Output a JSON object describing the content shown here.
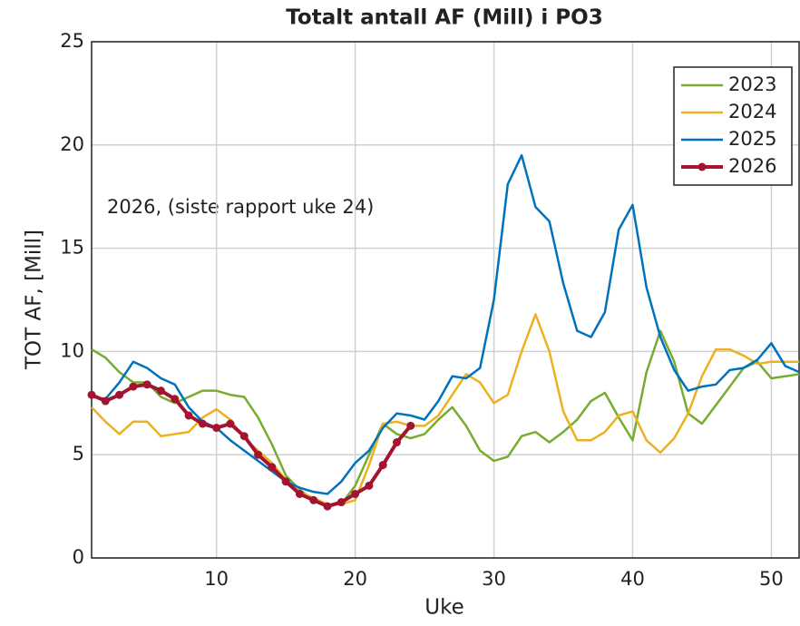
{
  "chart_data": {
    "type": "line",
    "title": "Totalt antall AF (Mill) i PO3",
    "xlabel": "Uke",
    "ylabel": "TOT AF, [Mill]",
    "annotation": "2026, (siste rapport uke 24)",
    "x": [
      1,
      2,
      3,
      4,
      5,
      6,
      7,
      8,
      9,
      10,
      11,
      12,
      13,
      14,
      15,
      16,
      17,
      18,
      19,
      20,
      21,
      22,
      23,
      24,
      25,
      26,
      27,
      28,
      29,
      30,
      31,
      32,
      33,
      34,
      35,
      36,
      37,
      38,
      39,
      40,
      41,
      42,
      43,
      44,
      45,
      46,
      47,
      48,
      49,
      50,
      51,
      52
    ],
    "xlim": [
      1,
      52
    ],
    "ylim": [
      0,
      25
    ],
    "xticks": [
      10,
      20,
      30,
      40,
      50
    ],
    "yticks": [
      0,
      5,
      10,
      15,
      20,
      25
    ],
    "grid": true,
    "legend": "upper right",
    "series": [
      {
        "name": "2023",
        "color": "#77ac30",
        "width": 2.5,
        "marker": false,
        "values": [
          10.1,
          9.7,
          9.0,
          8.5,
          8.5,
          7.8,
          7.5,
          7.8,
          8.1,
          8.1,
          7.9,
          7.8,
          6.8,
          5.5,
          4.0,
          3.3,
          2.8,
          2.6,
          2.6,
          3.5,
          5.0,
          6.5,
          6.0,
          5.8,
          6.0,
          6.7,
          7.3,
          6.4,
          5.2,
          4.7,
          4.9,
          5.9,
          6.1,
          5.6,
          6.1,
          6.7,
          7.6,
          8.0,
          6.8,
          5.7,
          9.0,
          11.0,
          9.5,
          7.0,
          6.5,
          7.4,
          8.3,
          9.2,
          9.5,
          8.7,
          8.8,
          8.9
        ]
      },
      {
        "name": "2024",
        "color": "#edb120",
        "width": 2.5,
        "marker": false,
        "values": [
          7.3,
          6.6,
          6.0,
          6.6,
          6.6,
          5.9,
          6.0,
          6.1,
          6.8,
          7.2,
          6.7,
          5.8,
          5.2,
          4.6,
          3.8,
          3.2,
          2.9,
          2.6,
          2.6,
          2.8,
          4.5,
          6.5,
          6.6,
          6.4,
          6.4,
          6.9,
          7.9,
          8.9,
          8.5,
          7.5,
          7.9,
          10.0,
          11.8,
          10.0,
          7.1,
          5.7,
          5.7,
          6.1,
          6.9,
          7.1,
          5.7,
          5.1,
          5.8,
          7.0,
          8.8,
          10.1,
          10.1,
          9.8,
          9.4,
          9.5,
          9.5,
          9.5
        ]
      },
      {
        "name": "2025",
        "color": "#0072bd",
        "width": 2.5,
        "marker": false,
        "values": [
          7.8,
          7.7,
          8.5,
          9.5,
          9.2,
          8.7,
          8.4,
          7.3,
          6.6,
          6.3,
          5.7,
          5.2,
          4.7,
          4.2,
          3.7,
          3.4,
          3.2,
          3.1,
          3.7,
          4.6,
          5.2,
          6.3,
          7.0,
          6.9,
          6.7,
          7.6,
          8.8,
          8.7,
          9.2,
          12.5,
          18.1,
          19.5,
          17.0,
          16.3,
          13.3,
          11.0,
          10.7,
          11.9,
          15.9,
          17.1,
          13.1,
          10.7,
          9.1,
          8.1,
          8.3,
          8.4,
          9.1,
          9.2,
          9.6,
          10.4,
          9.3,
          9.0
        ]
      },
      {
        "name": "2026",
        "color": "#a2142f",
        "width": 4,
        "marker": true,
        "values": [
          7.9,
          7.6,
          7.9,
          8.3,
          8.4,
          8.1,
          7.7,
          6.9,
          6.5,
          6.3,
          6.5,
          5.9,
          5.0,
          4.4,
          3.7,
          3.1,
          2.8,
          2.5,
          2.7,
          3.1,
          3.5,
          4.5,
          5.6,
          6.4,
          null,
          null,
          null,
          null,
          null,
          null,
          null,
          null,
          null,
          null,
          null,
          null,
          null,
          null,
          null,
          null,
          null,
          null,
          null,
          null,
          null,
          null,
          null,
          null,
          null,
          null,
          null,
          null
        ]
      }
    ]
  }
}
